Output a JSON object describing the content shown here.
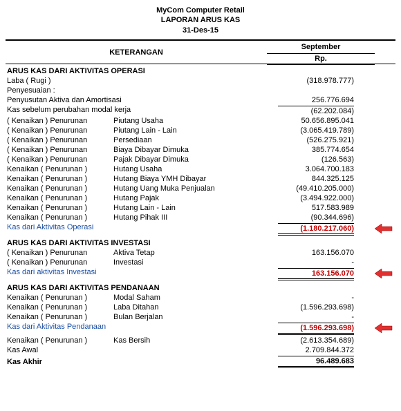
{
  "header": {
    "company": "MyCom Computer Retail",
    "title": "LAPORAN ARUS KAS",
    "date": "31-Des-15"
  },
  "columns": {
    "desc": "KETERANGAN",
    "period": "September",
    "currency": "Rp."
  },
  "sections": {
    "operasi": {
      "title": "ARUS KAS DARI AKTIVITAS OPERASI",
      "laba_label": "Laba ( Rugi )",
      "laba_value": "(318.978.777)",
      "penyesuaian": "Penyesuaian :",
      "penyusutan_label": "Penyusutan Aktiva dan Amortisasi",
      "penyusutan_value": "256.776.694",
      "kas_sebelum_label": "Kas sebelum perubahan modal kerja",
      "kas_sebelum_value": "(62.202.084)",
      "rows": [
        {
          "c1": "( Kenaikan ) Penurunan",
          "c2": "Piutang Usaha",
          "v": "50.656.895.041"
        },
        {
          "c1": "( Kenaikan ) Penurunan",
          "c2": "Piutang Lain - Lain",
          "v": "(3.065.419.789)"
        },
        {
          "c1": "( Kenaikan ) Penurunan",
          "c2": "Persediaan",
          "v": "(526.275.921)"
        },
        {
          "c1": "( Kenaikan ) Penurunan",
          "c2": "Biaya Dibayar Dimuka",
          "v": "385.774.654"
        },
        {
          "c1": "( Kenaikan ) Penurunan",
          "c2": "Pajak Dibayar Dimuka",
          "v": "(126.563)"
        },
        {
          "c1": "Kenaikan ( Penurunan )",
          "c2": "Hutang Usaha",
          "v": "3.064.700.183"
        },
        {
          "c1": "Kenaikan ( Penurunan )",
          "c2": "Hutang Biaya YMH Dibayar",
          "v": "844.325.125"
        },
        {
          "c1": "Kenaikan ( Penurunan )",
          "c2": "Hutang Uang Muka Penjualan",
          "v": "(49.410.205.000)"
        },
        {
          "c1": "Kenaikan ( Penurunan )",
          "c2": "Hutang Pajak",
          "v": "(3.494.922.000)"
        },
        {
          "c1": "Kenaikan ( Penurunan )",
          "c2": "Hutang Lain - Lain",
          "v": "517.583.989"
        },
        {
          "c1": "Kenaikan ( Penurunan )",
          "c2": "Hutang Pihak III",
          "v": "(90.344.696)"
        }
      ],
      "total_label": "Kas dari Aktivitas Operasi",
      "total_value": "(1.180.217.060)"
    },
    "investasi": {
      "title": "ARUS KAS DARI AKTIVITAS INVESTASI",
      "rows": [
        {
          "c1": "( Kenaikan ) Penurunan",
          "c2": "Aktiva Tetap",
          "v": "163.156.070"
        },
        {
          "c1": "( Kenaikan ) Penurunan",
          "c2": "Investasi",
          "v": "-"
        }
      ],
      "total_label": "Kas dari aktivitas Investasi",
      "total_value": "163.156.070"
    },
    "pendanaan": {
      "title": "ARUS KAS DARI AKTIVITAS PENDANAAN",
      "rows": [
        {
          "c1": "Kenaikan ( Penurunan )",
          "c2": "Modal Saham",
          "v": "-"
        },
        {
          "c1": "Kenaikan ( Penurunan )",
          "c2": "Laba Ditahan",
          "v": "(1.596.293.698)"
        },
        {
          "c1": "Kenaikan ( Penurunan )",
          "c2": "Bulan Berjalan",
          "v": "-"
        }
      ],
      "total_label": "Kas dari Aktivitas Pendanaan",
      "total_value": "(1.596.293.698)"
    },
    "summary": {
      "kas_bersih_c1": "Kenaikan ( Penurunan )",
      "kas_bersih_c2": "Kas Bersih",
      "kas_bersih_v": "(2.613.354.689)",
      "kas_awal_label": "Kas Awal",
      "kas_awal_v": "2.709.844.372",
      "kas_akhir_label": "Kas Akhir",
      "kas_akhir_v": "96.489.683"
    }
  },
  "arrow_svg": "<svg width='26' height='14'><polygon points='0,7 10,0 10,4 25,4 25,10 10,10 10,14' fill='#e03030' stroke='#900' stroke-width='0.5'/></svg>"
}
